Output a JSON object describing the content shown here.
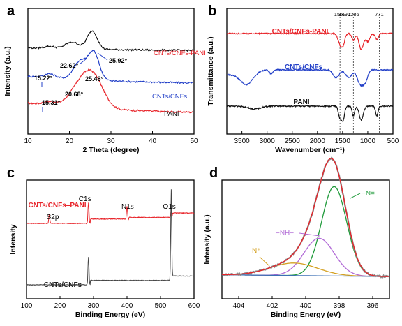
{
  "chart_data": [
    {
      "panel": "a",
      "type": "line",
      "xlabel": "2 Theta (degree)",
      "ylabel": "Intensity (a.u.)",
      "xlim": [
        10,
        50
      ],
      "xticks": [
        "10",
        "20",
        "30",
        "40",
        "50"
      ],
      "grid": false,
      "series": [
        {
          "name": "CNTs/CNFs-PANI",
          "color": "#e8242a",
          "offset": 2.0,
          "peaks": [
            [
              22.62,
              0.6,
              2.6
            ],
            [
              25.92,
              0.8,
              2.4
            ],
            [
              15.2,
              0.1,
              1.5
            ]
          ],
          "base": [
            0.35,
            0.12
          ]
        },
        {
          "name": "CNTs/CNFs",
          "color": "#2340c8",
          "offset": 1.0,
          "peaks": [
            [
              22.62,
              0.55,
              1.6
            ],
            [
              25.9,
              0.8,
              1.3
            ],
            [
              15.22,
              0.12,
              1.4
            ]
          ],
          "base": [
            0.25,
            0.1
          ]
        },
        {
          "name": "PANI",
          "color": "#111111",
          "offset": 0.0,
          "peaks": [
            [
              20.68,
              0.2,
              1.6
            ],
            [
              25.48,
              0.55,
              1.2
            ],
            [
              15.31,
              0.06,
              1.2
            ]
          ],
          "base": [
            0.1,
            0.06
          ]
        }
      ],
      "annotations": [
        {
          "text": "22.62°",
          "x": 22.62
        },
        {
          "text": "25.92°",
          "x": 25.92
        },
        {
          "text": "15.22°",
          "x": 15.22
        },
        {
          "text": "25.48°",
          "x": 25.48
        },
        {
          "text": "20.68°",
          "x": 20.68
        },
        {
          "text": "15.31°",
          "x": 15.31
        }
      ]
    },
    {
      "panel": "b",
      "type": "line",
      "xlabel": "Wavenumber (cm⁻¹)",
      "ylabel": "Transmittance (a.u.)",
      "xlim": [
        3800,
        500
      ],
      "xticks": [
        "3500",
        "3000",
        "2500",
        "2000",
        "1500",
        "1000",
        "500"
      ],
      "reference_lines": [
        1552,
        1490,
        1286,
        771
      ],
      "reference_labels": [
        "1552",
        "1490",
        "1286",
        "771"
      ],
      "grid": false,
      "series": [
        {
          "name": "CNTs/CNFs-PANI",
          "color": "#e8242a",
          "offset": 2.0
        },
        {
          "name": "CNTs/CNFs",
          "color": "#2340c8",
          "offset": 1.0
        },
        {
          "name": "PANI",
          "color": "#111111",
          "offset": 0.0
        }
      ]
    },
    {
      "panel": "c",
      "type": "line",
      "xlabel": "Binding Energy (eV)",
      "ylabel": "Intensity",
      "xlim": [
        100,
        600
      ],
      "xticks": [
        "100",
        "200",
        "300",
        "400",
        "500",
        "600"
      ],
      "grid": false,
      "peak_labels": [
        {
          "text": "C1s",
          "x": 285
        },
        {
          "text": "N1s",
          "x": 400
        },
        {
          "text": "O1s",
          "x": 532
        },
        {
          "text": "S2p",
          "x": 168
        }
      ],
      "series": [
        {
          "name": "CNTs/CNFs–PANI",
          "color": "#e8242a",
          "offset": 1.0,
          "peaks": [
            [
              285,
              0.9
            ],
            [
              400,
              0.25
            ],
            [
              532,
              0.5
            ],
            [
              168,
              0.04
            ]
          ]
        },
        {
          "name": "CNTs/CNFs",
          "color": "#444444",
          "offset": 0.0,
          "peaks": [
            [
              285,
              1.3
            ],
            [
              532,
              2.6
            ]
          ]
        }
      ]
    },
    {
      "panel": "d",
      "type": "line",
      "xlabel": "Binding Energy (eV)",
      "ylabel": "Intensity (a.u.)",
      "xlim": [
        405,
        395
      ],
      "xticks": [
        "404",
        "402",
        "400",
        "398",
        "396"
      ],
      "grid": false,
      "components": [
        {
          "name": "−N=",
          "color": "#1f9a3a",
          "center": 398.3,
          "amp": 1.0,
          "width": 0.75
        },
        {
          "name": "−NH−",
          "color": "#b16ad6",
          "center": 399.2,
          "amp": 0.42,
          "width": 0.9
        },
        {
          "name": "N⁺",
          "color": "#d4a020",
          "center": 400.7,
          "amp": 0.14,
          "width": 1.4
        },
        {
          "name": "baseline",
          "color": "#3b6fb5"
        }
      ],
      "envelope_color": "#8a8a8a",
      "fit_color": "#e8242a"
    }
  ],
  "panel_letters": [
    "a",
    "b",
    "c",
    "d"
  ]
}
